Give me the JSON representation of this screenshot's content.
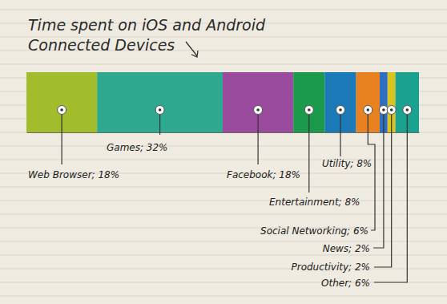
{
  "chart_data": {
    "type": "bar",
    "orientation": "horizontal",
    "stacked": true,
    "title": "Time spent on iOS and Android Connected Devices",
    "values": [
      18,
      32,
      18,
      8,
      8,
      6,
      2,
      2,
      6
    ],
    "value_labels": [
      "Web Browser; 18%",
      "Games; 32%",
      "Facebook; 18%",
      "Entertainment; 8%",
      "Utility; 8%",
      "Social Networking; 6%",
      "News; 2%",
      "Productivity; 2%",
      "Other; 6%"
    ],
    "colors": [
      "#a2bd2c",
      "#2ea98f",
      "#9b4b9e",
      "#1c9a4c",
      "#1b79b8",
      "#e8811f",
      "#2f6fc1",
      "#d9c31e",
      "#1ba18f"
    ],
    "data_labels": true,
    "xlim": [
      0,
      100
    ],
    "tick_labels": false
  }
}
